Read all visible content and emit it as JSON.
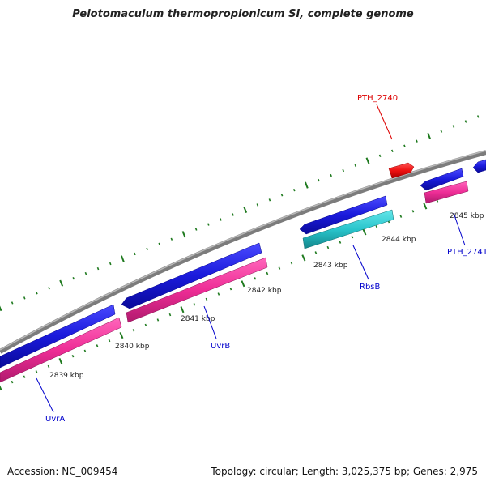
{
  "title": "Pelotomaculum thermopropionicum SI, complete genome",
  "footer": {
    "accession": "Accession: NC_009454",
    "summary": "Topology: circular; Length: 3,025,375 bp; Genes: 2,975"
  },
  "tick_labels": [
    {
      "id": "2839",
      "text": "2839 kbp"
    },
    {
      "id": "2840",
      "text": "2840 kbp"
    },
    {
      "id": "2841",
      "text": "2841 kbp"
    },
    {
      "id": "2842",
      "text": "2842 kbp"
    },
    {
      "id": "2843",
      "text": "2843 kbp"
    },
    {
      "id": "2844",
      "text": "2844 kbp"
    },
    {
      "id": "2845",
      "text": "2845 kbp"
    }
  ],
  "gene_labels": [
    {
      "id": "uvra",
      "text": "UvrA",
      "color": "#0000cc"
    },
    {
      "id": "uvrb",
      "text": "UvrB",
      "color": "#0000cc"
    },
    {
      "id": "rbsb",
      "text": "RbsB",
      "color": "#0000cc"
    },
    {
      "id": "pth2740",
      "text": "PTH_2740",
      "color": "#dd0000"
    },
    {
      "id": "pth2741",
      "text": "PTH_2741",
      "color": "#0000cc"
    }
  ],
  "colors": {
    "backbone": "#808080",
    "cds_forward": "#1a1adb",
    "gene_forward": "#ee2d96",
    "cds_other": "#29c5cc",
    "highlight_gene": "#ee1111",
    "tick": "#1f7a1f"
  }
}
